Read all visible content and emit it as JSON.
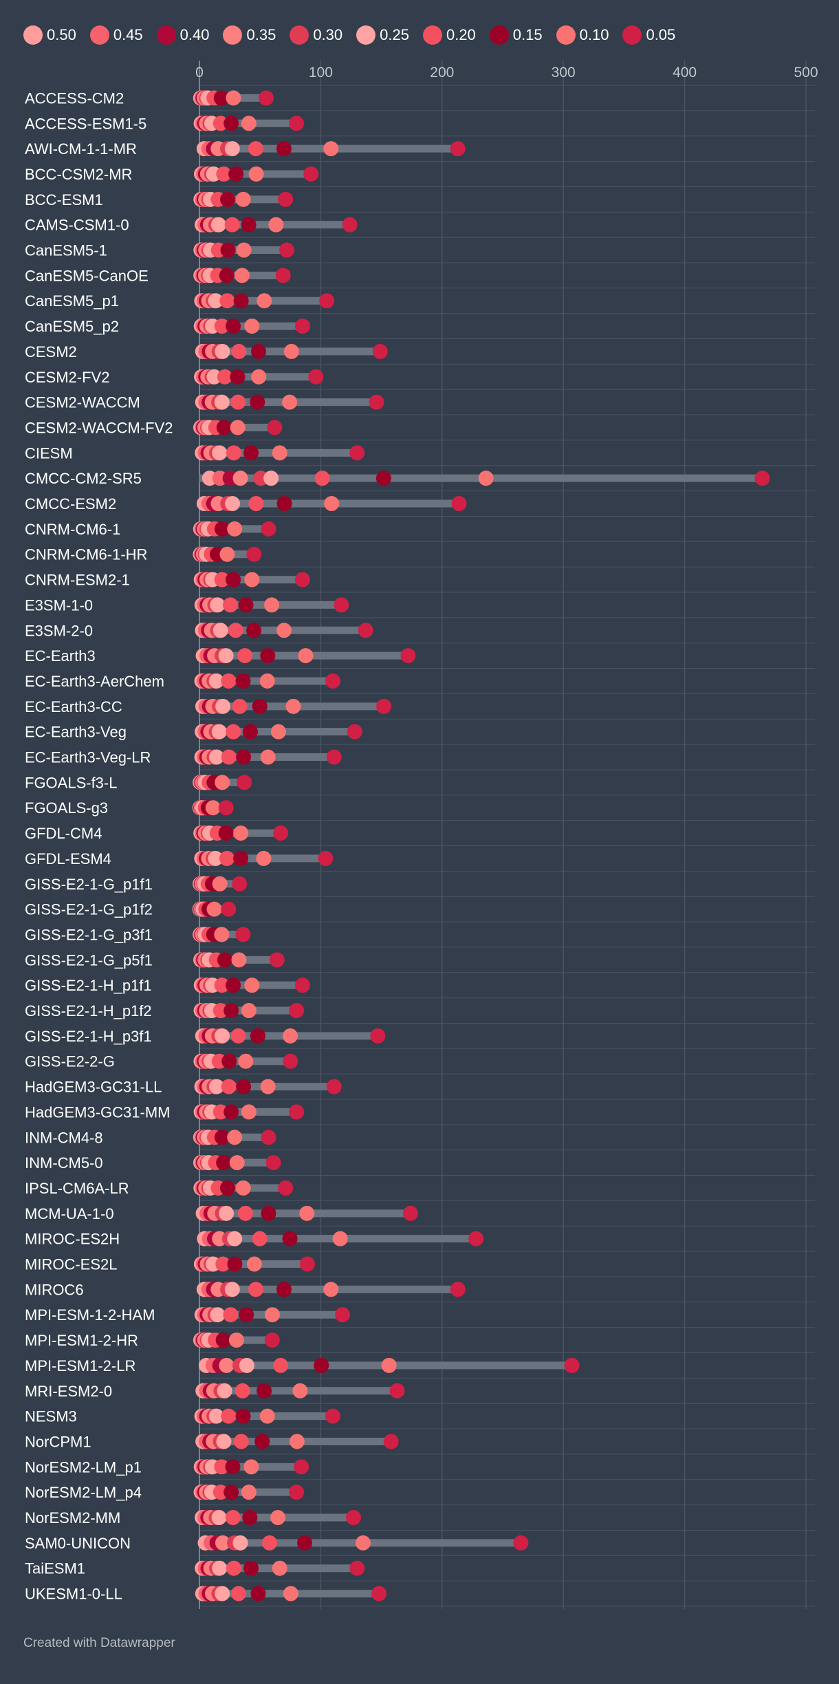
{
  "chart_data": {
    "type": "dot-range",
    "xlim": [
      0,
      500
    ],
    "xticks": [
      0,
      100,
      200,
      300,
      400,
      500
    ],
    "legend": [
      {
        "label": "0.50",
        "color": "#ff9d9d"
      },
      {
        "label": "0.45",
        "color": "#f7616d"
      },
      {
        "label": "0.40",
        "color": "#b1083a"
      },
      {
        "label": "0.35",
        "color": "#fc8080"
      },
      {
        "label": "0.30",
        "color": "#e03d54"
      },
      {
        "label": "0.25",
        "color": "#ffa3a3"
      },
      {
        "label": "0.20",
        "color": "#f5505f"
      },
      {
        "label": "0.15",
        "color": "#9d0027"
      },
      {
        "label": "0.10",
        "color": "#fa7373"
      },
      {
        "label": "0.05",
        "color": "#d21f45"
      }
    ],
    "ratios": [
      1,
      2,
      3,
      4,
      6,
      7,
      12,
      18,
      28,
      55
    ],
    "models": [
      {
        "name": "ACCESS-CM2",
        "max": 55
      },
      {
        "name": "ACCESS-ESM1-5",
        "max": 80
      },
      {
        "name": "AWI-CM-1-1-MR",
        "max": 213
      },
      {
        "name": "BCC-CSM2-MR",
        "max": 92
      },
      {
        "name": "BCC-ESM1",
        "max": 71
      },
      {
        "name": "CAMS-CSM1-0",
        "max": 124
      },
      {
        "name": "CanESM5-1",
        "max": 72
      },
      {
        "name": "CanESM5-CanOE",
        "max": 69
      },
      {
        "name": "CanESM5_p1",
        "max": 105
      },
      {
        "name": "CanESM5_p2",
        "max": 85
      },
      {
        "name": "CESM2",
        "max": 149
      },
      {
        "name": "CESM2-FV2",
        "max": 96
      },
      {
        "name": "CESM2-WACCM",
        "max": 146
      },
      {
        "name": "CESM2-WACCM-FV2",
        "max": 62
      },
      {
        "name": "CIESM",
        "max": 130
      },
      {
        "name": "CMCC-CM2-SR5",
        "max": 464
      },
      {
        "name": "CMCC-ESM2",
        "max": 214
      },
      {
        "name": "CNRM-CM6-1",
        "max": 57
      },
      {
        "name": "CNRM-CM6-1-HR",
        "max": 45
      },
      {
        "name": "CNRM-ESM2-1",
        "max": 85
      },
      {
        "name": "E3SM-1-0",
        "max": 117
      },
      {
        "name": "E3SM-2-0",
        "max": 137
      },
      {
        "name": "EC-Earth3",
        "max": 172
      },
      {
        "name": "EC-Earth3-AerChem",
        "max": 110
      },
      {
        "name": "EC-Earth3-CC",
        "max": 152
      },
      {
        "name": "EC-Earth3-Veg",
        "max": 128
      },
      {
        "name": "EC-Earth3-Veg-LR",
        "max": 111
      },
      {
        "name": "FGOALS-f3-L",
        "max": 37
      },
      {
        "name": "FGOALS-g3",
        "max": 22
      },
      {
        "name": "GFDL-CM4",
        "max": 67
      },
      {
        "name": "GFDL-ESM4",
        "max": 104
      },
      {
        "name": "GISS-E2-1-G_p1f1",
        "max": 33
      },
      {
        "name": "GISS-E2-1-G_p1f2",
        "max": 24
      },
      {
        "name": "GISS-E2-1-G_p3f1",
        "max": 36
      },
      {
        "name": "GISS-E2-1-G_p5f1",
        "max": 64
      },
      {
        "name": "GISS-E2-1-H_p1f1",
        "max": 85
      },
      {
        "name": "GISS-E2-1-H_p1f2",
        "max": 80
      },
      {
        "name": "GISS-E2-1-H_p3f1",
        "max": 147
      },
      {
        "name": "GISS-E2-2-G",
        "max": 75
      },
      {
        "name": "HadGEM3-GC31-LL",
        "max": 111
      },
      {
        "name": "HadGEM3-GC31-MM",
        "max": 80
      },
      {
        "name": "INM-CM4-8",
        "max": 57
      },
      {
        "name": "INM-CM5-0",
        "max": 61
      },
      {
        "name": "IPSL-CM6A-LR",
        "max": 71
      },
      {
        "name": "MCM-UA-1-0",
        "max": 174
      },
      {
        "name": "MIROC-ES2H",
        "max": 228
      },
      {
        "name": "MIROC-ES2L",
        "max": 89
      },
      {
        "name": "MIROC6",
        "max": 213
      },
      {
        "name": "MPI-ESM-1-2-HAM",
        "max": 118
      },
      {
        "name": "MPI-ESM1-2-HR",
        "max": 60
      },
      {
        "name": "MPI-ESM1-2-LR",
        "max": 307
      },
      {
        "name": "MRI-ESM2-0",
        "max": 163
      },
      {
        "name": "NESM3",
        "max": 110
      },
      {
        "name": "NorCPM1",
        "max": 158
      },
      {
        "name": "NorESM2-LM_p1",
        "max": 84
      },
      {
        "name": "NorESM2-LM_p4",
        "max": 80
      },
      {
        "name": "NorESM2-MM",
        "max": 127
      },
      {
        "name": "SAM0-UNICON",
        "max": 265
      },
      {
        "name": "TaiESM1",
        "max": 130
      },
      {
        "name": "UKESM1-0-LL",
        "max": 148
      }
    ]
  },
  "footer": {
    "credit": "Created with Datawrapper"
  }
}
